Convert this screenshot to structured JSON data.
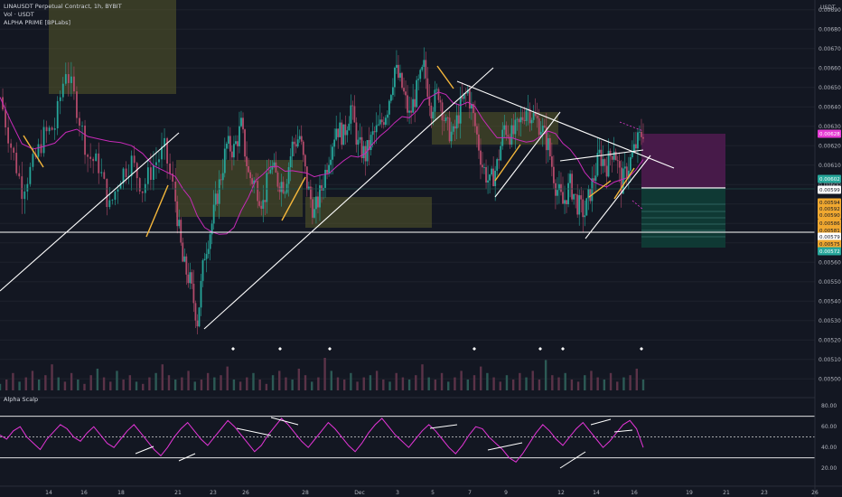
{
  "legend": {
    "symbol_line": "LINAUSDT Perpetual Contract, 1h, BYBIT",
    "volume_line": "Vol · USDT",
    "indicator_line": "ALPHA PRIME [BPLabs]"
  },
  "axis": {
    "currency": "USDT"
  },
  "oscillator": {
    "title": "Alpha Scalp",
    "ticks": [
      "80.00",
      "60.00",
      "40.00",
      "20.00"
    ]
  },
  "colors": {
    "background": "#131722",
    "candle_up": "#26a69a",
    "candle_down": "#b24a6a",
    "ma": "#c72ab8",
    "oscillator": "#e535d8",
    "zone": "#585a2a",
    "long_profit": "#0f3b36",
    "short_stop": "#4a1a4c",
    "current_price": "#e63bd4",
    "tag_green": "#26a69a",
    "tag_orange": "#f0a830"
  },
  "price_labels": [
    {
      "text": "0.00628",
      "color": "#e63bd4"
    },
    {
      "text": "0.00602",
      "color": "#26a69a"
    },
    {
      "text": "0.00599",
      "color": "#ffffff"
    },
    {
      "text": "0.00594",
      "color": "#f0a830"
    },
    {
      "text": "0.00592",
      "color": "#f0a830"
    },
    {
      "text": "0.00590",
      "color": "#f0a830"
    },
    {
      "text": "0.00586",
      "color": "#f0a830"
    },
    {
      "text": "0.00581",
      "color": "#f0a830"
    },
    {
      "text": "0.00579",
      "color": "#ffffff"
    },
    {
      "text": "0.00575",
      "color": "#f0a830"
    },
    {
      "text": "0.00572",
      "color": "#26a69a"
    }
  ],
  "chart_data": {
    "type": "line",
    "title": "LINAUSDT Perpetual Contract, 1h, BYBIT",
    "ylabel": "USDT",
    "ylim": [
      0.00495,
      0.00695
    ],
    "y_ticks": [
      0.0069,
      0.0068,
      0.0067,
      0.0066,
      0.0065,
      0.0064,
      0.0063,
      0.0062,
      0.0061,
      0.006,
      0.0059,
      0.0058,
      0.0057,
      0.0056,
      0.0055,
      0.0054,
      0.0053,
      0.0052,
      0.0051,
      0.005
    ],
    "x_ticks": [
      "14",
      "16",
      "18",
      "21",
      "23",
      "26",
      "28",
      "Dec",
      "3",
      "5",
      "7",
      "9",
      "12",
      "14",
      "16",
      "19",
      "21",
      "23",
      "26"
    ],
    "price_path": [
      [
        0,
        0.00645
      ],
      [
        3,
        0.0062
      ],
      [
        6,
        0.00598
      ],
      [
        9,
        0.0061
      ],
      [
        12,
        0.00625
      ],
      [
        15,
        0.0063
      ],
      [
        18,
        0.0066
      ],
      [
        21,
        0.0064
      ],
      [
        24,
        0.00615
      ],
      [
        27,
        0.0061
      ],
      [
        30,
        0.00588
      ],
      [
        33,
        0.00605
      ],
      [
        36,
        0.00612
      ],
      [
        39,
        0.00598
      ],
      [
        42,
        0.0061
      ],
      [
        45,
        0.00618
      ],
      [
        48,
        0.00592
      ],
      [
        50,
        0.0056
      ],
      [
        52,
        0.0055
      ],
      [
        54,
        0.0053
      ],
      [
        56,
        0.00565
      ],
      [
        58,
        0.0058
      ],
      [
        60,
        0.006
      ],
      [
        62,
        0.0062
      ],
      [
        64,
        0.00618
      ],
      [
        66,
        0.0063
      ],
      [
        68,
        0.00605
      ],
      [
        70,
        0.006
      ],
      [
        72,
        0.0059
      ],
      [
        74,
        0.0061
      ],
      [
        76,
        0.00602
      ],
      [
        78,
        0.006
      ],
      [
        80,
        0.0062
      ],
      [
        82,
        0.00625
      ],
      [
        84,
        0.006
      ],
      [
        86,
        0.00585
      ],
      [
        88,
        0.00598
      ],
      [
        90,
        0.00615
      ],
      [
        92,
        0.0063
      ],
      [
        94,
        0.00625
      ],
      [
        96,
        0.0064
      ],
      [
        98,
        0.0062
      ],
      [
        100,
        0.00615
      ],
      [
        102,
        0.00625
      ],
      [
        104,
        0.0063
      ],
      [
        106,
        0.0064
      ],
      [
        108,
        0.0066
      ],
      [
        110,
        0.0065
      ],
      [
        112,
        0.00635
      ],
      [
        114,
        0.00648
      ],
      [
        116,
        0.0066
      ],
      [
        118,
        0.0064
      ],
      [
        120,
        0.00648
      ],
      [
        122,
        0.0063
      ],
      [
        124,
        0.00625
      ],
      [
        126,
        0.0064
      ],
      [
        128,
        0.00648
      ],
      [
        130,
        0.0063
      ],
      [
        132,
        0.0061
      ],
      [
        134,
        0.006
      ],
      [
        136,
        0.0061
      ],
      [
        138,
        0.0063
      ],
      [
        140,
        0.00625
      ],
      [
        142,
        0.0063
      ],
      [
        144,
        0.0064
      ],
      [
        146,
        0.00635
      ],
      [
        148,
        0.0063
      ],
      [
        150,
        0.0062
      ],
      [
        152,
        0.006
      ],
      [
        154,
        0.0059
      ],
      [
        156,
        0.006
      ],
      [
        158,
        0.0059
      ],
      [
        160,
        0.00585
      ],
      [
        162,
        0.006
      ],
      [
        164,
        0.00615
      ],
      [
        166,
        0.0061
      ],
      [
        168,
        0.0062
      ],
      [
        170,
        0.006
      ],
      [
        172,
        0.0061
      ],
      [
        174,
        0.0062
      ],
      [
        176,
        0.00628
      ]
    ],
    "x_range": [
      0,
      176
    ],
    "series": [
      {
        "name": "Vol · USDT",
        "values": [
          3,
          5,
          8,
          4,
          6,
          9,
          5,
          7,
          12,
          6,
          4,
          8,
          5,
          3,
          7,
          10,
          6,
          4,
          9,
          5,
          7,
          4,
          3,
          6,
          8,
          12,
          7,
          5,
          6,
          9,
          4,
          5,
          8,
          6,
          7,
          11,
          5,
          4,
          6,
          8,
          5,
          3,
          7,
          9,
          6,
          5,
          10,
          7,
          4,
          6,
          15,
          9,
          6,
          5,
          8,
          4,
          6,
          7,
          9,
          5,
          4,
          8,
          6,
          5,
          7,
          12,
          6,
          5,
          8,
          4,
          6,
          9,
          5,
          7,
          11,
          8,
          6,
          4,
          7,
          5,
          8,
          6,
          9,
          5,
          14,
          7,
          6,
          8,
          5,
          4,
          7,
          9,
          6,
          5,
          8,
          4,
          6,
          7,
          10,
          5
        ]
      },
      {
        "name": "Alpha Scalp",
        "values": [
          52,
          48,
          56,
          60,
          50,
          44,
          38,
          48,
          55,
          62,
          58,
          50,
          46,
          54,
          60,
          52,
          44,
          40,
          48,
          56,
          62,
          54,
          46,
          38,
          32,
          40,
          50,
          58,
          64,
          56,
          48,
          42,
          50,
          58,
          66,
          60,
          52,
          44,
          36,
          42,
          52,
          60,
          68,
          62,
          54,
          46,
          40,
          48,
          56,
          64,
          58,
          50,
          42,
          36,
          44,
          54,
          62,
          68,
          60,
          52,
          46,
          40,
          48,
          56,
          62,
          56,
          48,
          40,
          34,
          42,
          52,
          60,
          58,
          50,
          44,
          38,
          30,
          26,
          34,
          44,
          54,
          62,
          56,
          48,
          42,
          50,
          58,
          64,
          56,
          48,
          40,
          46,
          54,
          62,
          66,
          58,
          40
        ]
      }
    ]
  }
}
